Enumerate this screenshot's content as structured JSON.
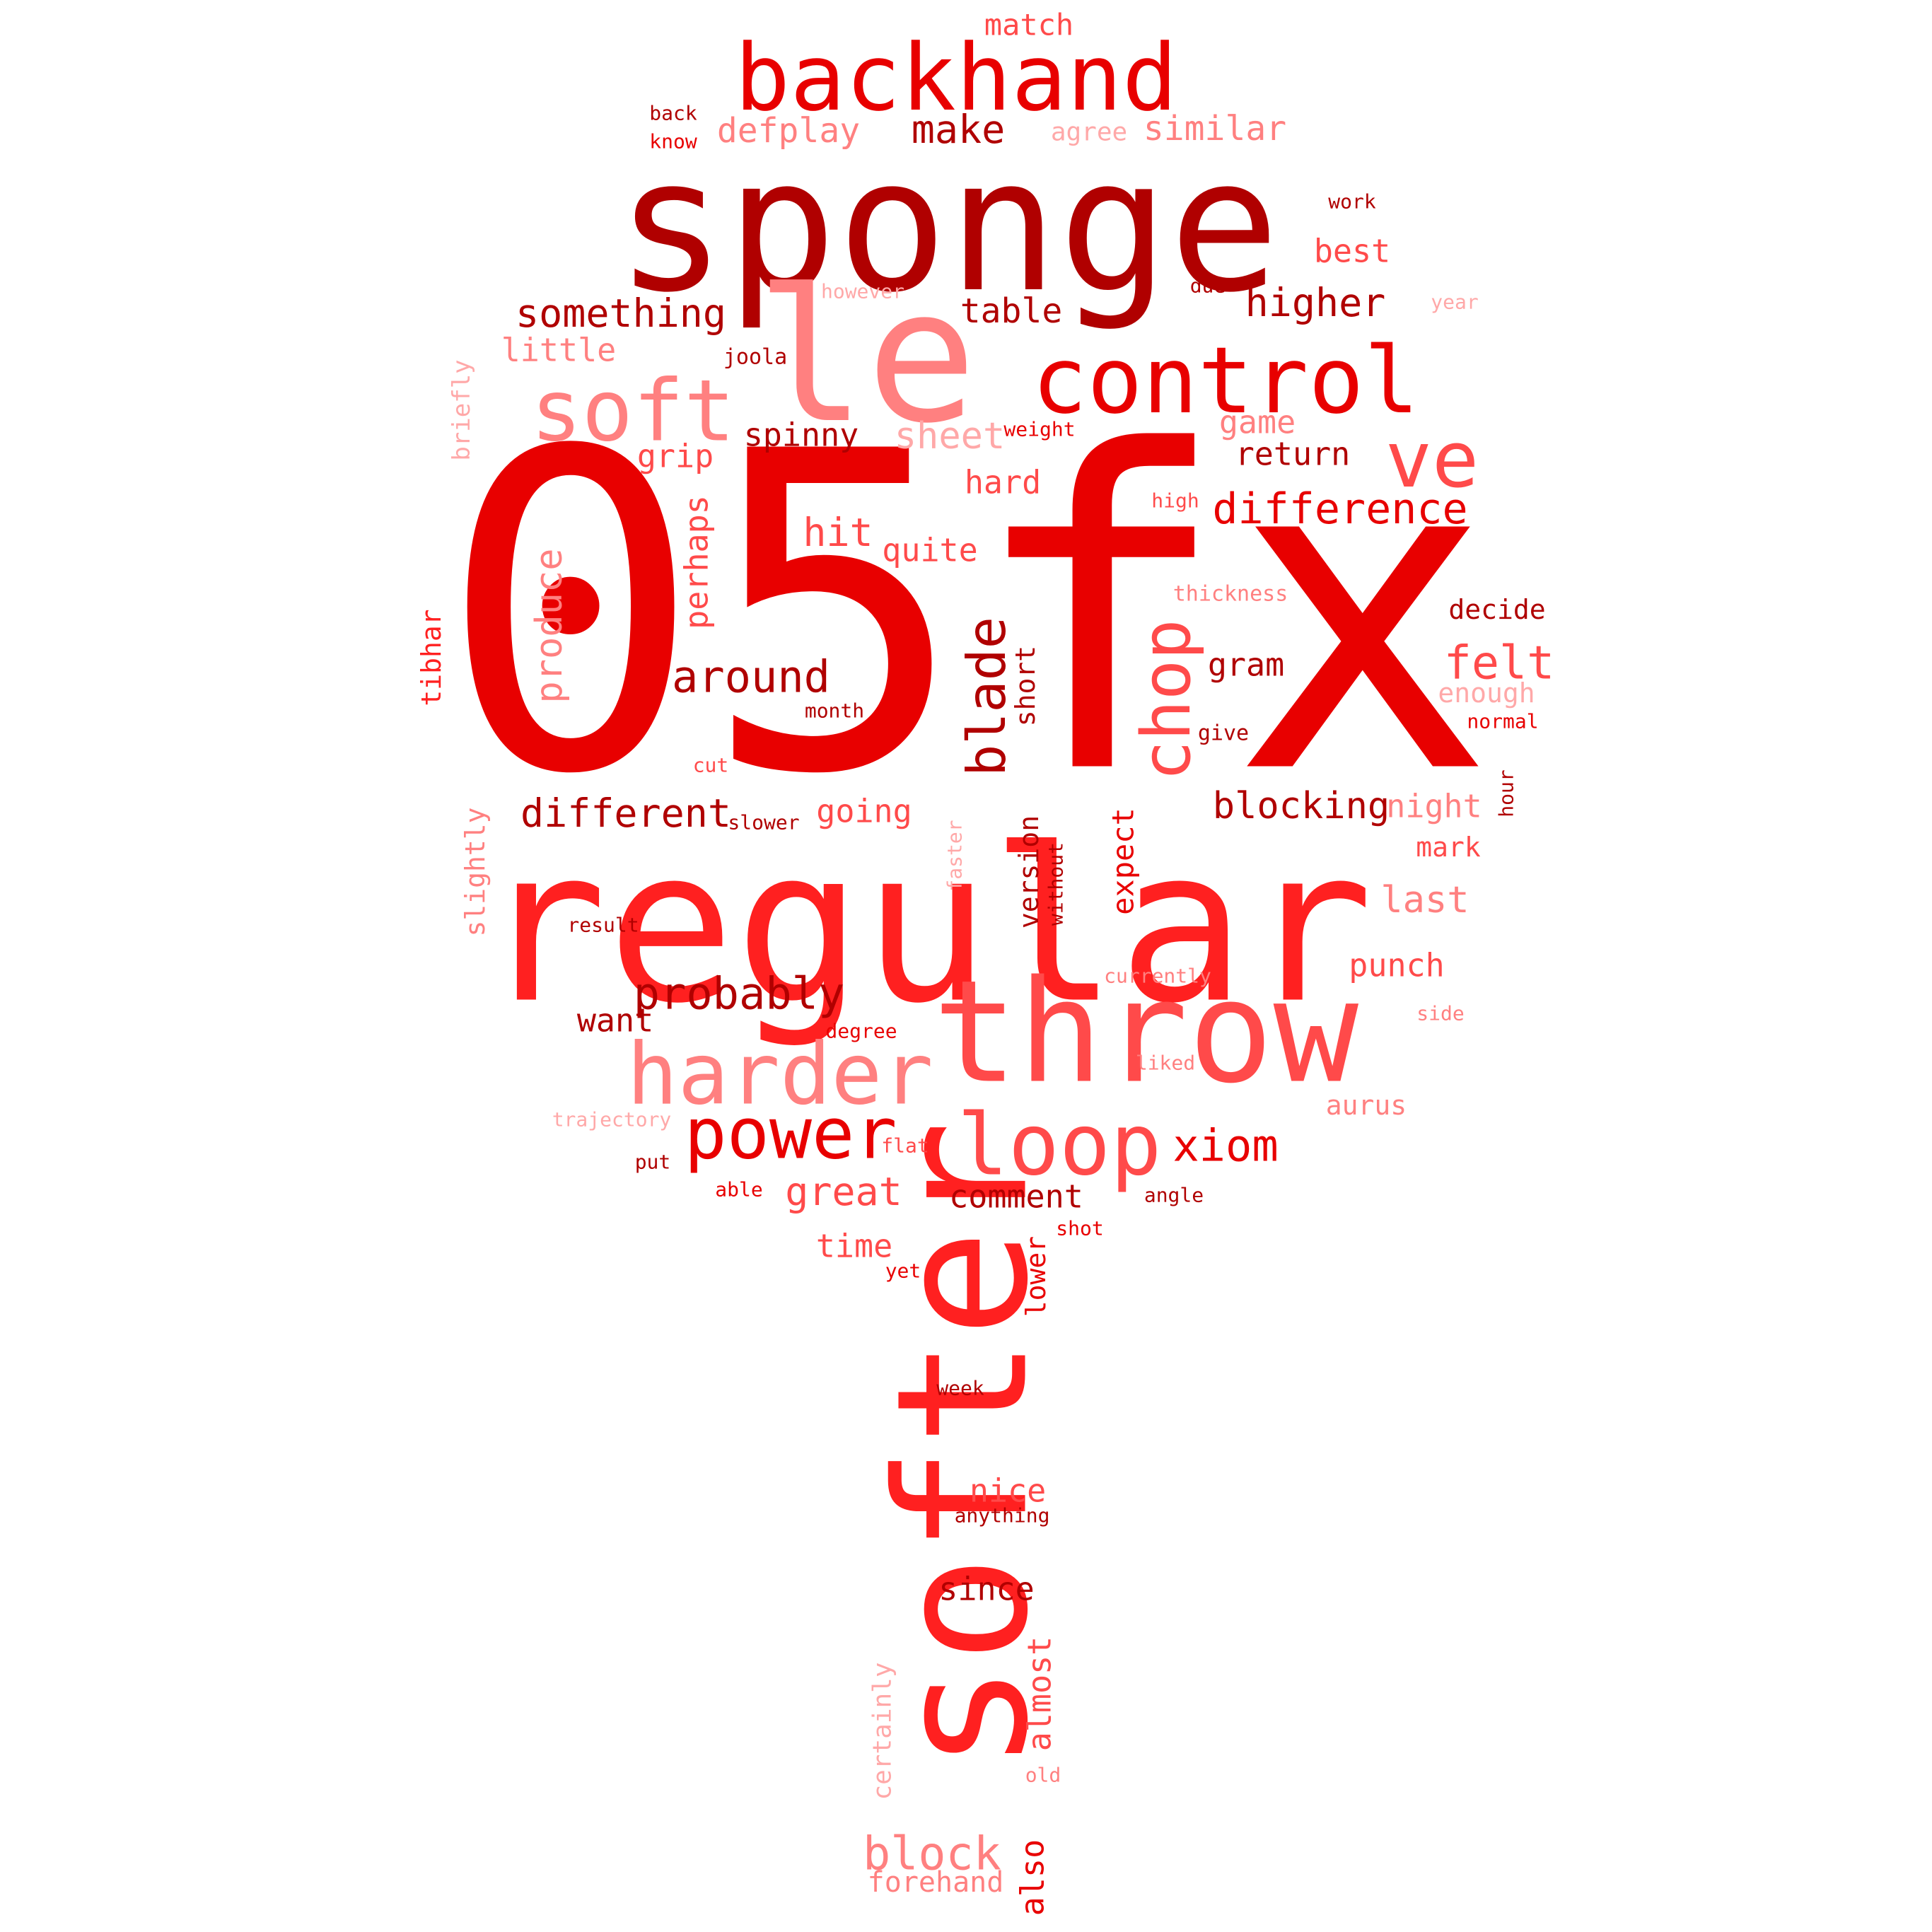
{
  "palette": {
    "dark_red": "#b00000",
    "red": "#e80000",
    "bright_red": "#ff2020",
    "coral": "#ff4a4a",
    "pink": "#ff8080",
    "light_pink": "#ffa8a8"
  },
  "word_cloud": {
    "words": [
      {
        "text": "05fx",
        "color": "red"
      },
      {
        "text": "regular",
        "color": "bright_red"
      },
      {
        "text": "sponge",
        "color": "dark_red"
      },
      {
        "text": "softer",
        "color": "bright_red"
      },
      {
        "text": "throw",
        "color": "coral"
      },
      {
        "text": "le",
        "color": "pink"
      },
      {
        "text": "backhand",
        "color": "red"
      },
      {
        "text": "control",
        "color": "red"
      },
      {
        "text": "soft",
        "color": "pink"
      },
      {
        "text": "harder",
        "color": "pink"
      },
      {
        "text": "loop",
        "color": "coral"
      },
      {
        "text": "power",
        "color": "red"
      },
      {
        "text": "ve",
        "color": "coral"
      },
      {
        "text": "blade",
        "color": "dark_red"
      },
      {
        "text": "chop",
        "color": "coral"
      },
      {
        "text": "difference",
        "color": "red"
      },
      {
        "text": "probably",
        "color": "dark_red"
      },
      {
        "text": "around",
        "color": "dark_red"
      },
      {
        "text": "felt",
        "color": "coral"
      },
      {
        "text": "xiom",
        "color": "red"
      },
      {
        "text": "block",
        "color": "pink"
      },
      {
        "text": "something",
        "color": "dark_red"
      },
      {
        "text": "different",
        "color": "dark_red"
      },
      {
        "text": "make",
        "color": "dark_red"
      },
      {
        "text": "higher",
        "color": "dark_red"
      },
      {
        "text": "hit",
        "color": "coral"
      },
      {
        "text": "blocking",
        "color": "dark_red"
      },
      {
        "text": "produce",
        "color": "pink"
      },
      {
        "text": "great",
        "color": "coral"
      },
      {
        "text": "table",
        "color": "dark_red"
      },
      {
        "text": "defplay",
        "color": "pink"
      },
      {
        "text": "similar",
        "color": "pink"
      },
      {
        "text": "match",
        "color": "coral"
      },
      {
        "text": "best",
        "color": "coral"
      },
      {
        "text": "little",
        "color": "pink"
      },
      {
        "text": "sheet",
        "color": "light_pink"
      },
      {
        "text": "spinny",
        "color": "dark_red"
      },
      {
        "text": "grip",
        "color": "coral"
      },
      {
        "text": "return",
        "color": "dark_red"
      },
      {
        "text": "game",
        "color": "pink"
      },
      {
        "text": "hard",
        "color": "coral"
      },
      {
        "text": "quite",
        "color": "coral"
      },
      {
        "text": "perhaps",
        "color": "coral"
      },
      {
        "text": "gram",
        "color": "dark_red"
      },
      {
        "text": "going",
        "color": "coral"
      },
      {
        "text": "night",
        "color": "pink"
      },
      {
        "text": "last",
        "color": "pink"
      },
      {
        "text": "punch",
        "color": "coral"
      },
      {
        "text": "want",
        "color": "dark_red"
      },
      {
        "text": "comment",
        "color": "dark_red"
      },
      {
        "text": "time",
        "color": "coral"
      },
      {
        "text": "nice",
        "color": "coral"
      },
      {
        "text": "since",
        "color": "dark_red"
      },
      {
        "text": "almost",
        "color": "coral"
      },
      {
        "text": "also",
        "color": "red"
      },
      {
        "text": "forehand",
        "color": "pink"
      },
      {
        "text": "expect",
        "color": "red"
      },
      {
        "text": "version",
        "color": "dark_red"
      },
      {
        "text": "short",
        "color": "dark_red"
      },
      {
        "text": "slightly",
        "color": "pink"
      },
      {
        "text": "tibhar",
        "color": "bright_red"
      },
      {
        "text": "lower",
        "color": "red"
      },
      {
        "text": "certainly",
        "color": "light_pink"
      },
      {
        "text": "aurus",
        "color": "pink"
      },
      {
        "text": "enough",
        "color": "light_pink"
      },
      {
        "text": "decide",
        "color": "dark_red"
      },
      {
        "text": "mark",
        "color": "coral"
      },
      {
        "text": "briefly",
        "color": "light_pink"
      },
      {
        "text": "back",
        "color": "dark_red"
      },
      {
        "text": "know",
        "color": "red"
      },
      {
        "text": "agree",
        "color": "light_pink"
      },
      {
        "text": "work",
        "color": "dark_red"
      },
      {
        "text": "however",
        "color": "light_pink"
      },
      {
        "text": "due",
        "color": "dark_red"
      },
      {
        "text": "year",
        "color": "light_pink"
      },
      {
        "text": "joola",
        "color": "dark_red"
      },
      {
        "text": "weight",
        "color": "red"
      },
      {
        "text": "high",
        "color": "coral"
      },
      {
        "text": "thickness",
        "color": "pink"
      },
      {
        "text": "month",
        "color": "dark_red"
      },
      {
        "text": "give",
        "color": "dark_red"
      },
      {
        "text": "normal",
        "color": "red"
      },
      {
        "text": "cut",
        "color": "coral"
      },
      {
        "text": "slower",
        "color": "dark_red"
      },
      {
        "text": "hour",
        "color": "dark_red"
      },
      {
        "text": "faster",
        "color": "light_pink"
      },
      {
        "text": "without",
        "color": "dark_red"
      },
      {
        "text": "result",
        "color": "dark_red"
      },
      {
        "text": "currently",
        "color": "pink"
      },
      {
        "text": "side",
        "color": "pink"
      },
      {
        "text": "degree",
        "color": "red"
      },
      {
        "text": "liked",
        "color": "pink"
      },
      {
        "text": "trajectory",
        "color": "light_pink"
      },
      {
        "text": "flat",
        "color": "coral"
      },
      {
        "text": "put",
        "color": "dark_red"
      },
      {
        "text": "angle",
        "color": "dark_red"
      },
      {
        "text": "able",
        "color": "red"
      },
      {
        "text": "shot",
        "color": "red"
      },
      {
        "text": "yet",
        "color": "red"
      },
      {
        "text": "week",
        "color": "dark_red"
      },
      {
        "text": "anything",
        "color": "dark_red"
      },
      {
        "text": "old",
        "color": "pink"
      }
    ]
  }
}
